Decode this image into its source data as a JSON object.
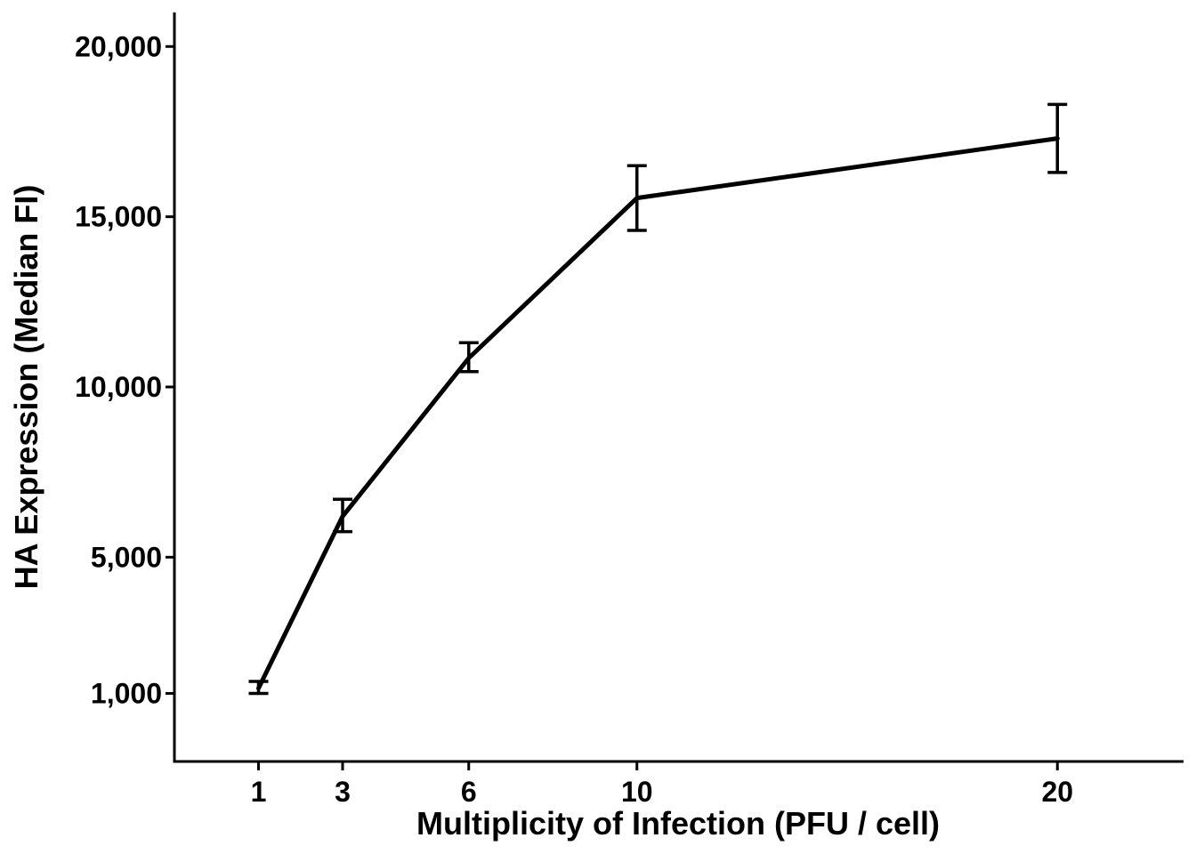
{
  "chart_data": {
    "type": "line",
    "title": "",
    "xlabel": "Multiplicity of Infection (PFU / cell)",
    "ylabel": "HA Expression (Median FI)",
    "x_ticks": [
      1,
      3,
      6,
      10,
      20
    ],
    "x_tick_labels": [
      "1",
      "3",
      "6",
      "10",
      "20"
    ],
    "y_ticks": [
      1000,
      5000,
      10000,
      15000,
      20000
    ],
    "y_tick_labels": [
      "1,000",
      "5,000",
      "10,000",
      "15,000",
      "20,000"
    ],
    "xlim": [
      -1,
      23
    ],
    "ylim": [
      -1000,
      21000
    ],
    "grid": false,
    "series": [
      {
        "x": [
          1,
          3,
          6,
          10,
          20
        ],
        "y": [
          1150,
          6200,
          10850,
          15550,
          17300
        ],
        "err_low": [
          1000,
          5750,
          10450,
          14600,
          16300
        ],
        "err_high": [
          1350,
          6700,
          11300,
          16500,
          18300
        ],
        "color": "#000000"
      }
    ]
  }
}
